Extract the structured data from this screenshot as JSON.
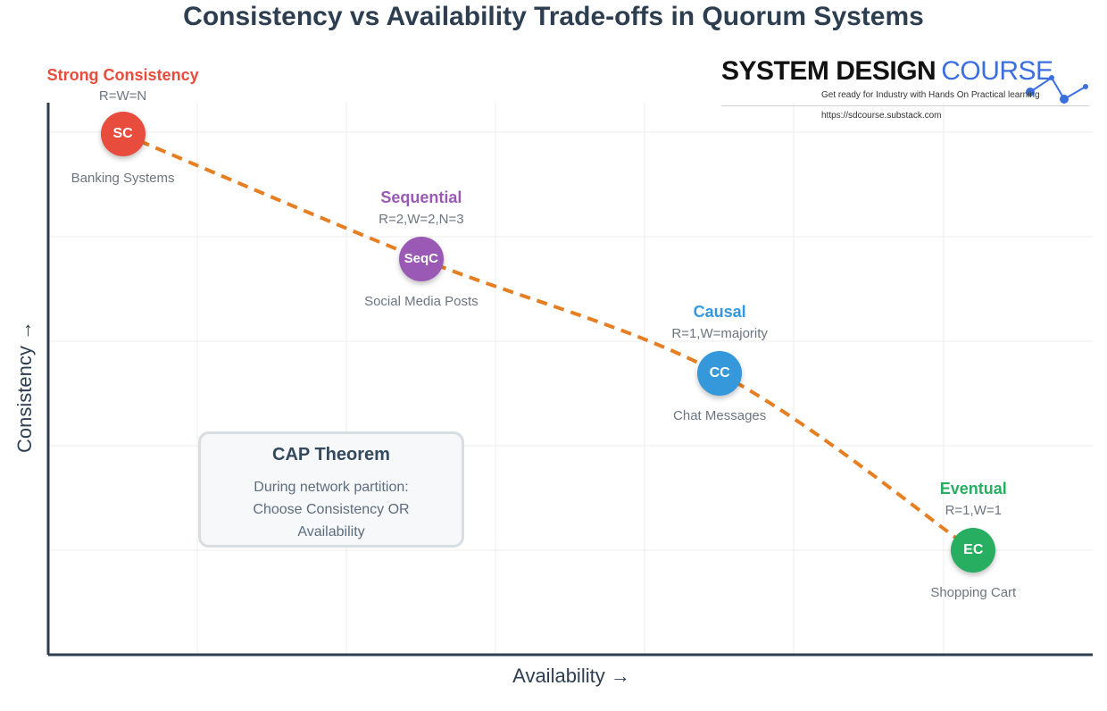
{
  "title": "Consistency vs Availability Trade-offs in Quorum Systems",
  "axes": {
    "x_label": "Availability →",
    "y_label": "Consistency →"
  },
  "colors": {
    "strong": "#e74c3c",
    "sequential": "#9b59b6",
    "causal": "#3498db",
    "eventual": "#27ae60",
    "curve": "#e67e22",
    "axis": "#2c3e50",
    "grid": "#ececec"
  },
  "nodes": [
    {
      "id": "strong",
      "abbr": "SC",
      "label": "Strong Consistency",
      "params": "R=W=N",
      "example": "Banking Systems",
      "availability": 0.5,
      "consistency": 5.0
    },
    {
      "id": "sequential",
      "abbr": "SeqC",
      "label": "Sequential",
      "params": "R=2,W=2,N=3",
      "example": "Social Media Posts",
      "availability": 2.5,
      "consistency": 3.8
    },
    {
      "id": "causal",
      "abbr": "CC",
      "label": "Causal",
      "params": "R=1,W=majority",
      "example": "Chat Messages",
      "availability": 4.5,
      "consistency": 2.7
    },
    {
      "id": "eventual",
      "abbr": "EC",
      "label": "Eventual",
      "params": "R=1,W=1",
      "example": "Shopping Cart",
      "availability": 6.2,
      "consistency": 1.0
    }
  ],
  "cap_box": {
    "title": "CAP Theorem",
    "line1": "During network partition:",
    "line2": "Choose Consistency OR",
    "line3": "Availability"
  },
  "brand": {
    "name": "SYSTEM DESIGN",
    "name_accent": "COURSE",
    "tagline": "Get ready for Industry with Hands On Practical learning",
    "url": "https://sdcourse.substack.com"
  }
}
